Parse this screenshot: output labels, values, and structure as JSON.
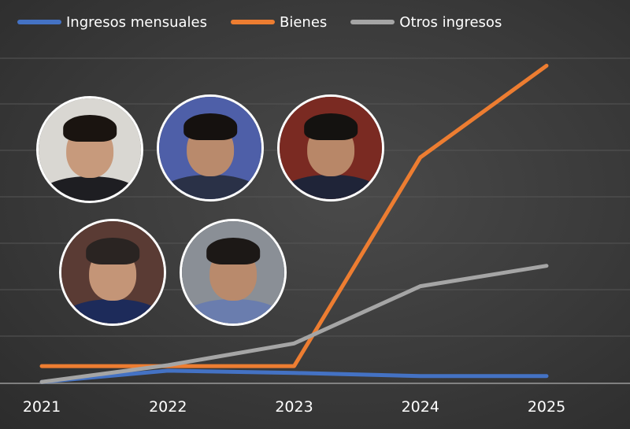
{
  "legend": [
    {
      "label": "Ingresos mensuales",
      "color": "#4472c4"
    },
    {
      "label": "Bienes",
      "color": "#ed7d31"
    },
    {
      "label": "Otros ingresos",
      "color": "#a5a5a5"
    }
  ],
  "chart_data": {
    "type": "line",
    "x": [
      "2021",
      "2022",
      "2023",
      "2024",
      "2025"
    ],
    "series": [
      {
        "name": "Ingresos mensuales",
        "color": "#4472c4",
        "values": [
          0.3,
          2.8,
          2.3,
          1.6,
          1.6
        ]
      },
      {
        "name": "Bienes",
        "color": "#ed7d31",
        "values": [
          3.8,
          3.8,
          3.8,
          49.8,
          70.0
        ]
      },
      {
        "name": "Otros ingresos",
        "color": "#a5a5a5",
        "values": [
          0.3,
          4.0,
          8.8,
          21.4,
          25.9
        ]
      }
    ],
    "ylim": [
      0,
      72
    ],
    "grid": true,
    "legend_position": "top",
    "xlabel": "",
    "ylabel": ""
  },
  "photos": [
    {
      "name": "photo-woman-long-hair",
      "bg": "#d9d7d2",
      "skin": "#c79a7c",
      "hair": "#1a1410",
      "suit": "#1e1e22"
    },
    {
      "name": "photo-man-glasses-microphone",
      "bg": "#4e5fa8",
      "skin": "#b98a6c",
      "hair": "#15110f",
      "suit": "#2a3147"
    },
    {
      "name": "photo-man-glasses-red-background",
      "bg": "#7a2a22",
      "skin": "#b88768",
      "hair": "#141210",
      "suit": "#1f2438"
    },
    {
      "name": "photo-man-gray-hair-speaking",
      "bg": "#5a3b34",
      "skin": "#c49577",
      "hair": "#2a2422",
      "suit": "#1d2b5a"
    },
    {
      "name": "photo-man-mustache",
      "bg": "#8a8f96",
      "skin": "#b98a6c",
      "hair": "#1c1816",
      "suit": "#6a7dae"
    }
  ]
}
